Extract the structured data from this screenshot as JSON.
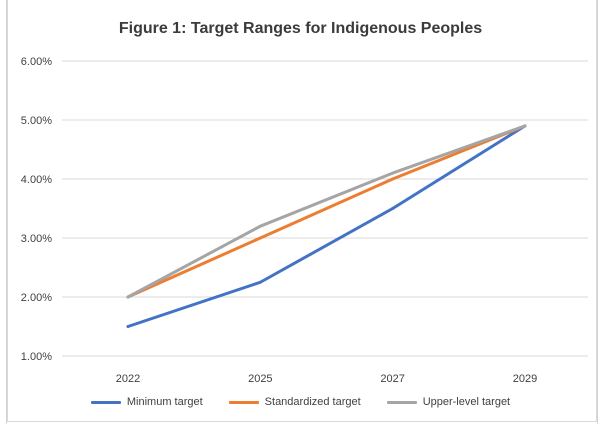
{
  "chart_data": {
    "type": "line",
    "title": "Figure 1: Target Ranges for Indigenous Peoples",
    "xlabel": "",
    "ylabel": "",
    "categories": [
      "2022",
      "2025",
      "2027",
      "2029"
    ],
    "ylim": [
      0.01,
      0.06
    ],
    "yticks": [
      {
        "value": 0.06,
        "label": "6.00%"
      },
      {
        "value": 0.05,
        "label": "5.00%"
      },
      {
        "value": 0.04,
        "label": "4.00%"
      },
      {
        "value": 0.03,
        "label": "3.00%"
      },
      {
        "value": 0.02,
        "label": "2.00%"
      },
      {
        "value": 0.01,
        "label": "1.00%"
      }
    ],
    "grid": true,
    "legend_position": "bottom",
    "series": [
      {
        "name": "Minimum target",
        "color": "#4472c4",
        "values": [
          0.015,
          0.0225,
          0.035,
          0.049
        ]
      },
      {
        "name": "Standardized target",
        "color": "#ed7d31",
        "values": [
          0.02,
          0.03,
          0.04,
          0.049
        ]
      },
      {
        "name": "Upper-level target",
        "color": "#a5a5a5",
        "values": [
          0.02,
          0.032,
          0.041,
          0.049
        ]
      }
    ]
  }
}
